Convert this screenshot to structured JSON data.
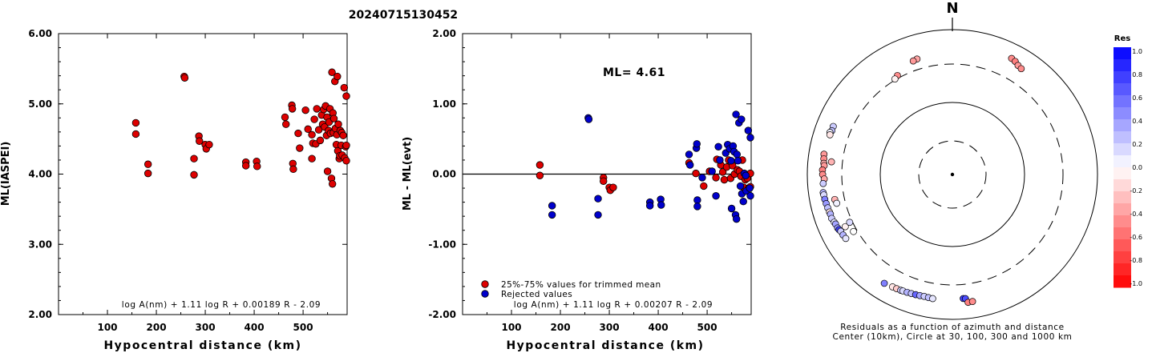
{
  "title": "20240715130452",
  "chart_data": [
    {
      "type": "scatter",
      "id": "left",
      "ylabel": "ML(IASPEI)",
      "xlabel": "Hypocentral distance (km)",
      "xlim": [
        0,
        590
      ],
      "ylim": [
        2.0,
        6.0
      ],
      "xticks": [
        100,
        200,
        300,
        400,
        500
      ],
      "xtick_labels": [
        "100",
        "200",
        "300",
        "400",
        "500"
      ],
      "yticks": [
        2,
        3,
        4,
        5,
        6
      ],
      "ytick_labels": [
        "2.00",
        "3.00",
        "4.00",
        "5.00",
        "6.00"
      ],
      "formula": "log A(nm) + 1.11 log R + 0.00189 R - 2.09",
      "point_color": "#dd0000",
      "points": [
        [
          158,
          4.73
        ],
        [
          158,
          4.57
        ],
        [
          183,
          4.14
        ],
        [
          183,
          4.01
        ],
        [
          257,
          5.39
        ],
        [
          258,
          5.37
        ],
        [
          277,
          4.22
        ],
        [
          277,
          3.99
        ],
        [
          287,
          4.54
        ],
        [
          288,
          4.47
        ],
        [
          300,
          4.42
        ],
        [
          302,
          4.36
        ],
        [
          308,
          4.42
        ],
        [
          383,
          4.17
        ],
        [
          383,
          4.12
        ],
        [
          405,
          4.18
        ],
        [
          406,
          4.11
        ],
        [
          463,
          4.81
        ],
        [
          465,
          4.71
        ],
        [
          477,
          4.98
        ],
        [
          478,
          4.93
        ],
        [
          479,
          4.15
        ],
        [
          480,
          4.07
        ],
        [
          490,
          4.58
        ],
        [
          493,
          4.37
        ],
        [
          505,
          4.91
        ],
        [
          510,
          4.64
        ],
        [
          518,
          4.22
        ],
        [
          518,
          4.56
        ],
        [
          520,
          4.44
        ],
        [
          523,
          4.78
        ],
        [
          526,
          4.43
        ],
        [
          528,
          4.93
        ],
        [
          532,
          4.63
        ],
        [
          535,
          4.48
        ],
        [
          538,
          4.84
        ],
        [
          540,
          4.71
        ],
        [
          542,
          4.92
        ],
        [
          544,
          4.67
        ],
        [
          546,
          4.97
        ],
        [
          548,
          4.55
        ],
        [
          549,
          4.81
        ],
        [
          550,
          4.04
        ],
        [
          552,
          4.62
        ],
        [
          553,
          4.74
        ],
        [
          555,
          4.93
        ],
        [
          556,
          4.58
        ],
        [
          558,
          3.94
        ],
        [
          559,
          5.45
        ],
        [
          560,
          3.86
        ],
        [
          561,
          4.87
        ],
        [
          562,
          4.59
        ],
        [
          563,
          4.79
        ],
        [
          565,
          5.32
        ],
        [
          566,
          4.65
        ],
        [
          568,
          4.42
        ],
        [
          569,
          4.56
        ],
        [
          570,
          5.39
        ],
        [
          571,
          4.33
        ],
        [
          572,
          4.71
        ],
        [
          574,
          4.22
        ],
        [
          575,
          4.26
        ],
        [
          576,
          4.62
        ],
        [
          578,
          4.41
        ],
        [
          579,
          4.59
        ],
        [
          580,
          4.27
        ],
        [
          582,
          4.55
        ],
        [
          584,
          5.23
        ],
        [
          585,
          4.23
        ],
        [
          587,
          4.39
        ],
        [
          589,
          4.41
        ],
        [
          590,
          5.11
        ],
        [
          590,
          4.19
        ]
      ]
    },
    {
      "type": "scatter",
      "id": "middle",
      "ylabel": "ML - ML(evt)",
      "xlabel": "Hypocentral distance (km)",
      "xlim": [
        0,
        590
      ],
      "ylim": [
        -2.0,
        2.0
      ],
      "xticks": [
        100,
        200,
        300,
        400,
        500
      ],
      "xtick_labels": [
        "100",
        "200",
        "300",
        "400",
        "500"
      ],
      "yticks": [
        -2,
        -1,
        0,
        1,
        2
      ],
      "ytick_labels": [
        "-2.00",
        "-1.00",
        "0.00",
        "1.00",
        "2.00"
      ],
      "annotation": "ML= 4.61",
      "formula": "log A(nm) + 1.11 log R + 0.00207 R - 2.09",
      "legend": [
        {
          "label": "25%-75% values for trimmed mean",
          "color": "#dd0000"
        },
        {
          "label": "Rejected values",
          "color": "#0000cc"
        }
      ],
      "series": [
        {
          "name": "25%-75% values for trimmed mean",
          "color": "#dd0000",
          "points": [
            [
              158,
              0.13
            ],
            [
              158,
              -0.02
            ],
            [
              288,
              -0.05
            ],
            [
              288,
              -0.1
            ],
            [
              300,
              -0.19
            ],
            [
              302,
              -0.23
            ],
            [
              308,
              -0.19
            ],
            [
              463,
              0.16
            ],
            [
              477,
              0.01
            ],
            [
              493,
              -0.17
            ],
            [
              505,
              0.04
            ],
            [
              518,
              -0.05
            ],
            [
              520,
              0.21
            ],
            [
              528,
              0.13
            ],
            [
              532,
              0.03
            ],
            [
              535,
              -0.08
            ],
            [
              540,
              0.1
            ],
            [
              544,
              0.2
            ],
            [
              548,
              -0.06
            ],
            [
              552,
              0.12
            ],
            [
              556,
              0.0
            ],
            [
              562,
              0.06
            ],
            [
              566,
              0.04
            ],
            [
              569,
              -0.03
            ],
            [
              572,
              0.2
            ],
            [
              575,
              -0.19
            ],
            [
              578,
              -0.08
            ],
            [
              582,
              -0.06
            ],
            [
              585,
              -0.2
            ],
            [
              589,
              -0.18
            ],
            [
              590,
              0.01
            ]
          ]
        },
        {
          "name": "Rejected values",
          "color": "#0000cc",
          "points": [
            [
              183,
              -0.45
            ],
            [
              183,
              -0.58
            ],
            [
              257,
              0.8
            ],
            [
              258,
              0.78
            ],
            [
              277,
              -0.35
            ],
            [
              277,
              -0.58
            ],
            [
              383,
              -0.4
            ],
            [
              383,
              -0.45
            ],
            [
              405,
              -0.36
            ],
            [
              406,
              -0.44
            ],
            [
              463,
              0.28
            ],
            [
              465,
              0.13
            ],
            [
              478,
              0.37
            ],
            [
              479,
              0.43
            ],
            [
              480,
              -0.37
            ],
            [
              480,
              -0.46
            ],
            [
              490,
              -0.05
            ],
            [
              510,
              0.04
            ],
            [
              518,
              -0.31
            ],
            [
              523,
              0.39
            ],
            [
              526,
              0.2
            ],
            [
              538,
              0.3
            ],
            [
              542,
              0.42
            ],
            [
              546,
              0.36
            ],
            [
              549,
              0.19
            ],
            [
              550,
              -0.49
            ],
            [
              553,
              0.4
            ],
            [
              555,
              0.32
            ],
            [
              558,
              -0.58
            ],
            [
              559,
              0.85
            ],
            [
              560,
              -0.64
            ],
            [
              561,
              0.28
            ],
            [
              563,
              0.19
            ],
            [
              565,
              0.73
            ],
            [
              568,
              -0.17
            ],
            [
              570,
              0.78
            ],
            [
              571,
              -0.28
            ],
            [
              574,
              -0.39
            ],
            [
              576,
              0.01
            ],
            [
              579,
              -0.02
            ],
            [
              580,
              -0.24
            ],
            [
              584,
              0.62
            ],
            [
              587,
              -0.2
            ],
            [
              590,
              0.52
            ],
            [
              590,
              -0.31
            ]
          ]
        }
      ]
    },
    {
      "type": "scatter",
      "id": "polar",
      "north_label": "N",
      "caption_line1": "Residuals as a function of azimuth and distance",
      "caption_line2": "Center (10km), Circle at 30, 100, 300 and 1000 km",
      "rings_km": [
        30,
        100,
        300,
        1000
      ],
      "color_scale": {
        "title": "Res",
        "min": -1.0,
        "max": 1.0,
        "tick_labels": [
          "1.0",
          "0.8",
          "0.6",
          "0.4",
          "0.2",
          "0.0",
          "-0.2",
          "-0.4",
          "-0.6",
          "-0.8",
          "-1.0"
        ],
        "negative_color": "#ff0000",
        "positive_color": "#0000ff",
        "zero_color": "#ffffff"
      },
      "points": [
        {
          "az": 27,
          "dist": 600,
          "res": -0.45
        },
        {
          "az": 29,
          "dist": 580,
          "res": -0.5
        },
        {
          "az": 31,
          "dist": 540,
          "res": -0.4
        },
        {
          "az": 33,
          "dist": 520,
          "res": -0.45
        },
        {
          "az": 343,
          "dist": 430,
          "res": -0.35
        },
        {
          "az": 341,
          "dist": 420,
          "res": -0.4
        },
        {
          "az": 331,
          "dist": 330,
          "res": -0.45
        },
        {
          "az": 329,
          "dist": 310,
          "res": -0.05
        },
        {
          "az": 292,
          "dist": 560,
          "res": 0.2
        },
        {
          "az": 290,
          "dist": 555,
          "res": 0.25
        },
        {
          "az": 289,
          "dist": 580,
          "res": 0.05
        },
        {
          "az": 288,
          "dist": 565,
          "res": -0.1
        },
        {
          "az": 279,
          "dist": 590,
          "res": -0.4
        },
        {
          "az": 277,
          "dist": 580,
          "res": -0.45
        },
        {
          "az": 275,
          "dist": 570,
          "res": -0.35
        },
        {
          "az": 274,
          "dist": 560,
          "res": -0.4
        },
        {
          "az": 272,
          "dist": 590,
          "res": -0.5
        },
        {
          "az": 270,
          "dist": 585,
          "res": -0.45
        },
        {
          "az": 268,
          "dist": 555,
          "res": -0.35
        },
        {
          "az": 266,
          "dist": 580,
          "res": 0.2
        },
        {
          "az": 276,
          "dist": 440,
          "res": -0.3
        },
        {
          "az": 262,
          "dist": 600,
          "res": 0.3
        },
        {
          "az": 261,
          "dist": 595,
          "res": 0.15
        },
        {
          "az": 259,
          "dist": 590,
          "res": 0.5
        },
        {
          "az": 257,
          "dist": 580,
          "res": 0.4
        },
        {
          "az": 255,
          "dist": 570,
          "res": 0.25
        },
        {
          "az": 253,
          "dist": 560,
          "res": -0.1
        },
        {
          "az": 252,
          "dist": 555,
          "res": 0.3
        },
        {
          "az": 250,
          "dist": 560,
          "res": 0.2
        },
        {
          "az": 248,
          "dist": 540,
          "res": 0.1
        },
        {
          "az": 247,
          "dist": 530,
          "res": 0.35
        },
        {
          "az": 245,
          "dist": 525,
          "res": 0.4
        },
        {
          "az": 244,
          "dist": 515,
          "res": 0.75
        },
        {
          "az": 243,
          "dist": 500,
          "res": 0.2
        },
        {
          "az": 241,
          "dist": 495,
          "res": 0.3
        },
        {
          "az": 239,
          "dist": 485,
          "res": 0.1
        },
        {
          "az": 258,
          "dist": 420,
          "res": -0.3
        },
        {
          "az": 256,
          "dist": 405,
          "res": 0.05
        },
        {
          "az": 244,
          "dist": 405,
          "res": -0.05
        },
        {
          "az": 245,
          "dist": 330,
          "res": 0.15
        },
        {
          "az": 240,
          "dist": 340,
          "res": 0.0
        },
        {
          "az": 212,
          "dist": 560,
          "res": 0.5
        },
        {
          "az": 208,
          "dist": 540,
          "res": -0.1
        },
        {
          "az": 206,
          "dist": 535,
          "res": -0.2
        },
        {
          "az": 204,
          "dist": 530,
          "res": 0.2
        },
        {
          "az": 203,
          "dist": 525,
          "res": 0.15
        },
        {
          "az": 201,
          "dist": 520,
          "res": 0.3
        },
        {
          "az": 199,
          "dist": 515,
          "res": 0.25
        },
        {
          "az": 197,
          "dist": 510,
          "res": 0.6
        },
        {
          "az": 195,
          "dist": 505,
          "res": 0.35
        },
        {
          "az": 193,
          "dist": 500,
          "res": 0.2
        },
        {
          "az": 191,
          "dist": 505,
          "res": 0.25
        },
        {
          "az": 189,
          "dist": 510,
          "res": 0.1
        },
        {
          "az": 175,
          "dist": 490,
          "res": 0.75
        },
        {
          "az": 174,
          "dist": 495,
          "res": 0.7
        },
        {
          "az": 173,
          "dist": 570,
          "res": -0.5
        },
        {
          "az": 171,
          "dist": 565,
          "res": -0.45
        }
      ]
    }
  ]
}
